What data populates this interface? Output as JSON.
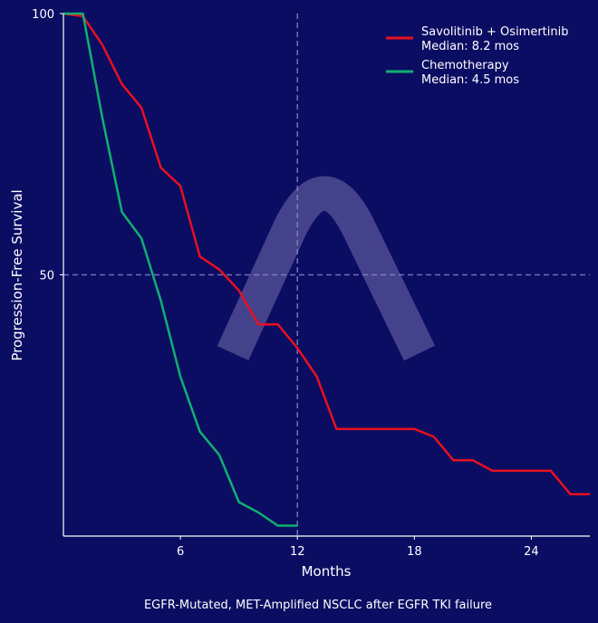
{
  "chart_data": {
    "type": "line",
    "title": "",
    "caption": "EGFR-Mutated, MET-Amplified NSCLC after EGFR TKI failure",
    "xlabel": "Months",
    "ylabel": "Progression-Free Survival",
    "xlim": [
      0,
      27
    ],
    "ylim": [
      0,
      100
    ],
    "xticks": [
      6,
      12,
      18,
      24
    ],
    "yticks": [
      50,
      100
    ],
    "grid": false,
    "reference_lines": {
      "x": 12,
      "y": 50
    },
    "legend": {
      "placement": "top-right"
    },
    "series": [
      {
        "name": "Savolitinib + Osimertinib",
        "legend_sub": "Median: 8.2 mos",
        "color": "#e8101e",
        "x": [
          0,
          1,
          2,
          3,
          4,
          5,
          6,
          7,
          8,
          9,
          10,
          11,
          12,
          13,
          14,
          15,
          16,
          17,
          18,
          19,
          20,
          21,
          22,
          23,
          24,
          25,
          26,
          27
        ],
        "y": [
          100,
          99.5,
          94,
          86.5,
          82,
          70.5,
          67,
          53.5,
          51,
          47,
          40.5,
          40.5,
          36,
          30.5,
          20.5,
          20.5,
          20.5,
          20.5,
          20.5,
          19,
          14.5,
          14.5,
          12.5,
          12.5,
          12.5,
          12.5,
          8,
          8
        ]
      },
      {
        "name": "Chemotherapy",
        "legend_sub": "Median: 4.5 mos",
        "color": "#10b070",
        "x": [
          0,
          1,
          2,
          3,
          4,
          5,
          6,
          7,
          8,
          9,
          10,
          11,
          12
        ],
        "y": [
          100,
          100,
          80,
          62,
          57,
          45,
          30.5,
          20,
          15.5,
          6.5,
          4.5,
          2,
          2
        ]
      }
    ]
  }
}
